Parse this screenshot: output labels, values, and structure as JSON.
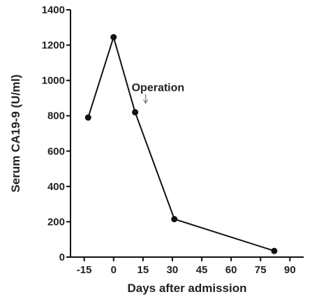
{
  "chart_data": {
    "type": "line",
    "xlabel": "Days after admission",
    "ylabel": "Serum CA19-9 (U/ml)",
    "xlim": [
      -22,
      97
    ],
    "ylim": [
      0,
      1400
    ],
    "x_ticks": [
      -15,
      0,
      15,
      30,
      45,
      60,
      75,
      90
    ],
    "y_ticks": [
      0,
      200,
      400,
      600,
      800,
      1000,
      1200,
      1400
    ],
    "grid": false,
    "series": [
      {
        "x": [
          -13,
          0,
          11,
          31,
          82
        ],
        "y": [
          790,
          1245,
          820,
          215,
          35
        ],
        "marker": "circle",
        "color": "#111111"
      }
    ],
    "annotations": [
      {
        "text": "Operation",
        "x": 11,
        "y": 820,
        "arrow": true
      }
    ]
  }
}
